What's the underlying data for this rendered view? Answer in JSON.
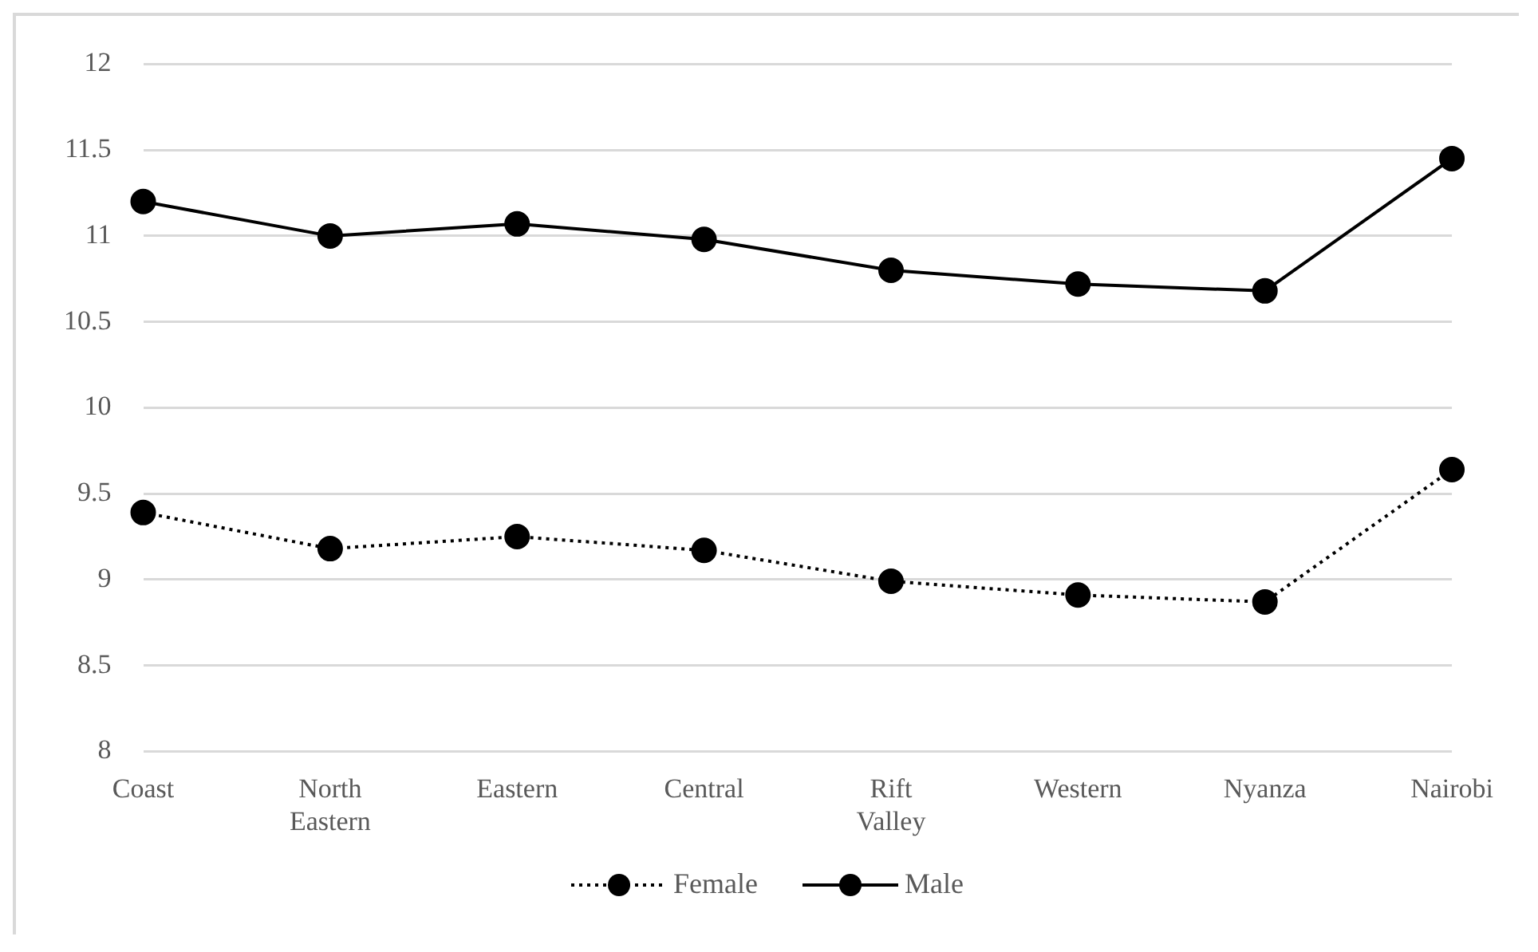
{
  "chart_data": {
    "type": "line",
    "categories": [
      "Coast",
      "North Eastern",
      "Eastern",
      "Central",
      "Rift Valley",
      "Western",
      "Nyanza",
      "Nairobi"
    ],
    "series": [
      {
        "name": "Female",
        "color": "#000000",
        "line_style": "dotted",
        "values": [
          9.39,
          9.18,
          9.25,
          9.17,
          8.99,
          8.91,
          8.87,
          9.64
        ]
      },
      {
        "name": "Male",
        "color": "#000000",
        "line_style": "solid",
        "values": [
          11.2,
          11.0,
          11.07,
          10.98,
          10.8,
          10.72,
          10.68,
          11.45
        ]
      }
    ],
    "ylim": [
      8,
      12
    ],
    "yticks": [
      8,
      8.5,
      9,
      9.5,
      10,
      10.5,
      11,
      11.5,
      12
    ],
    "grid": "y",
    "legend": "bottom",
    "marker": "circle"
  }
}
